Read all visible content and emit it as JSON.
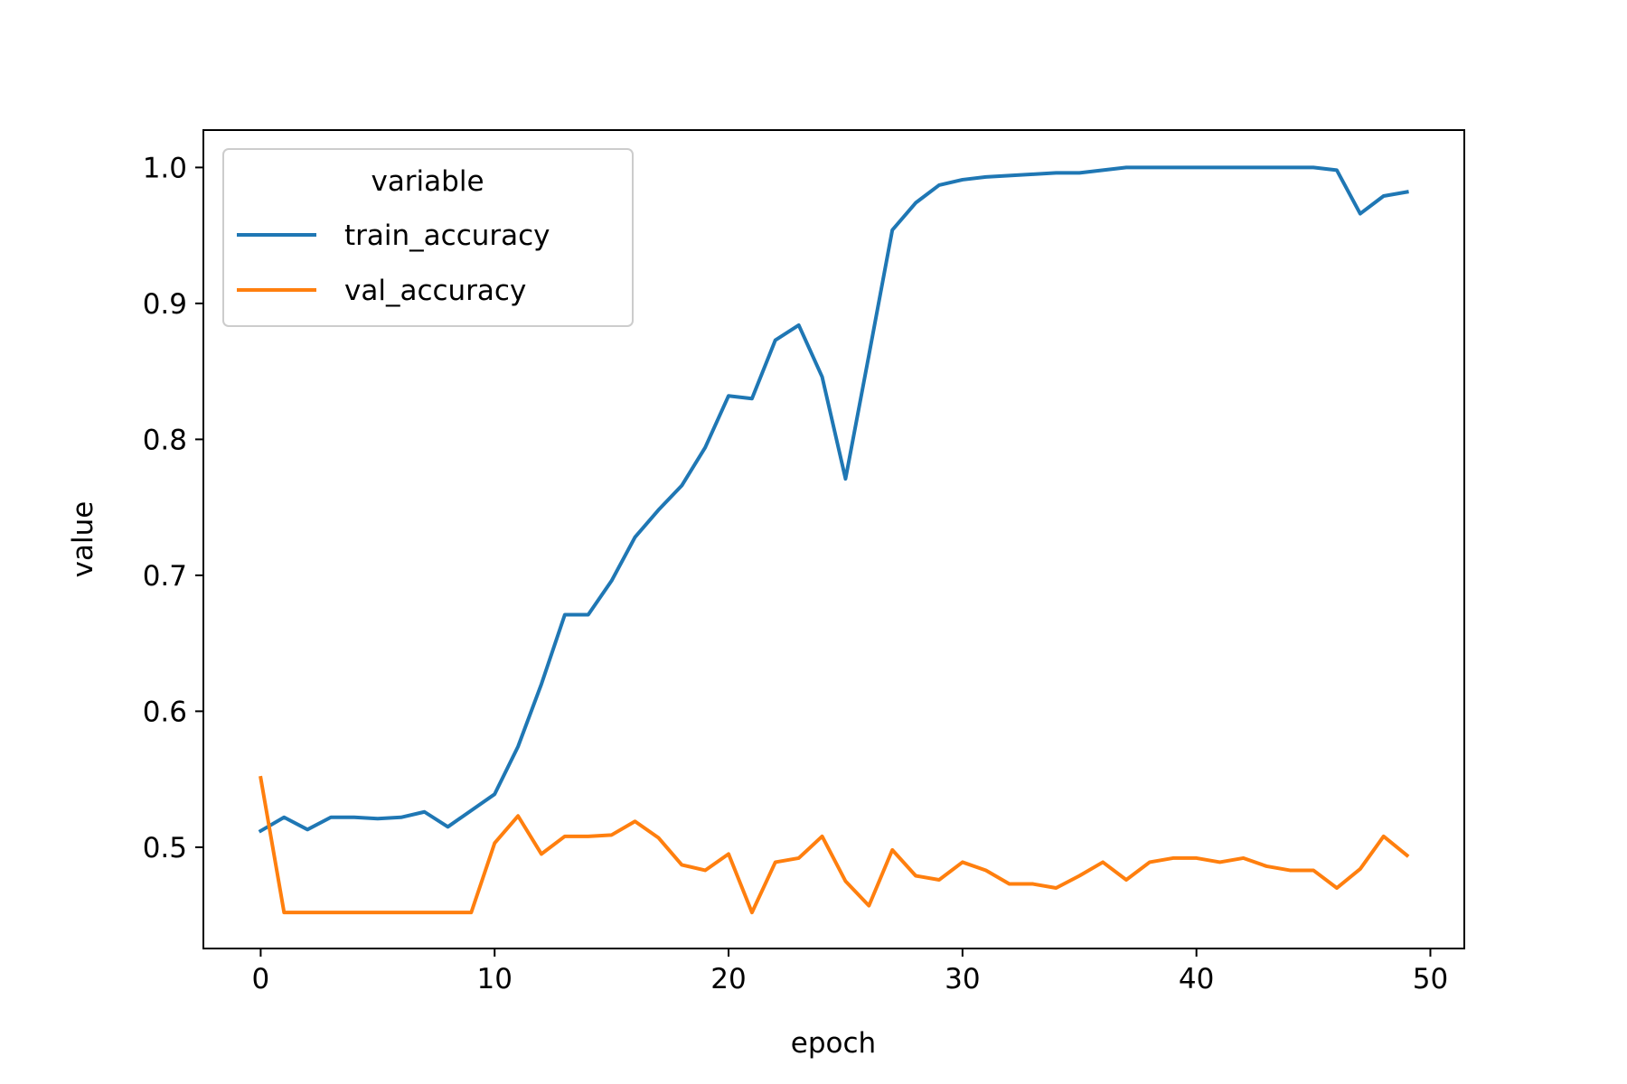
{
  "chart_data": {
    "type": "line",
    "title": "",
    "xlabel": "epoch",
    "ylabel": "value",
    "xlim": [
      -2.45,
      51.45
    ],
    "ylim": [
      0.4255,
      1.0275
    ],
    "xticks": [
      0,
      10,
      20,
      30,
      40,
      50
    ],
    "xtick_labels": [
      "0",
      "10",
      "20",
      "30",
      "40",
      "50"
    ],
    "yticks": [
      0.5,
      0.6,
      0.7,
      0.8,
      0.9,
      1.0
    ],
    "ytick_labels": [
      "0.5",
      "0.6",
      "0.7",
      "0.8",
      "0.9",
      "1.0"
    ],
    "grid": false,
    "legend": {
      "title": "variable",
      "position": "upper-left"
    },
    "x": [
      0,
      1,
      2,
      3,
      4,
      5,
      6,
      7,
      8,
      9,
      10,
      11,
      12,
      13,
      14,
      15,
      16,
      17,
      18,
      19,
      20,
      21,
      22,
      23,
      24,
      25,
      26,
      27,
      28,
      29,
      30,
      31,
      32,
      33,
      34,
      35,
      36,
      37,
      38,
      39,
      40,
      41,
      42,
      43,
      44,
      45,
      46,
      47,
      48,
      49
    ],
    "series": [
      {
        "name": "train_accuracy",
        "color": "#1f77b4",
        "values": [
          0.512,
          0.522,
          0.513,
          0.522,
          0.522,
          0.521,
          0.522,
          0.526,
          0.515,
          0.527,
          0.539,
          0.574,
          0.62,
          0.671,
          0.671,
          0.696,
          0.728,
          0.748,
          0.766,
          0.794,
          0.832,
          0.83,
          0.873,
          0.884,
          0.846,
          0.771,
          0.862,
          0.954,
          0.974,
          0.987,
          0.991,
          0.993,
          0.994,
          0.995,
          0.996,
          0.996,
          0.998,
          1.0,
          1.0,
          1.0,
          1.0,
          1.0,
          1.0,
          1.0,
          1.0,
          1.0,
          0.998,
          0.966,
          0.979,
          0.982
        ]
      },
      {
        "name": "val_accuracy",
        "color": "#ff7f0e",
        "values": [
          0.551,
          0.452,
          0.452,
          0.452,
          0.452,
          0.452,
          0.452,
          0.452,
          0.452,
          0.452,
          0.503,
          0.523,
          0.495,
          0.508,
          0.508,
          0.509,
          0.519,
          0.507,
          0.487,
          0.483,
          0.495,
          0.452,
          0.489,
          0.492,
          0.508,
          0.475,
          0.457,
          0.498,
          0.479,
          0.476,
          0.489,
          0.483,
          0.473,
          0.473,
          0.47,
          0.479,
          0.489,
          0.476,
          0.489,
          0.492,
          0.492,
          0.489,
          0.492,
          0.486,
          0.483,
          0.483,
          0.47,
          0.484,
          0.508,
          0.494
        ]
      }
    ]
  }
}
